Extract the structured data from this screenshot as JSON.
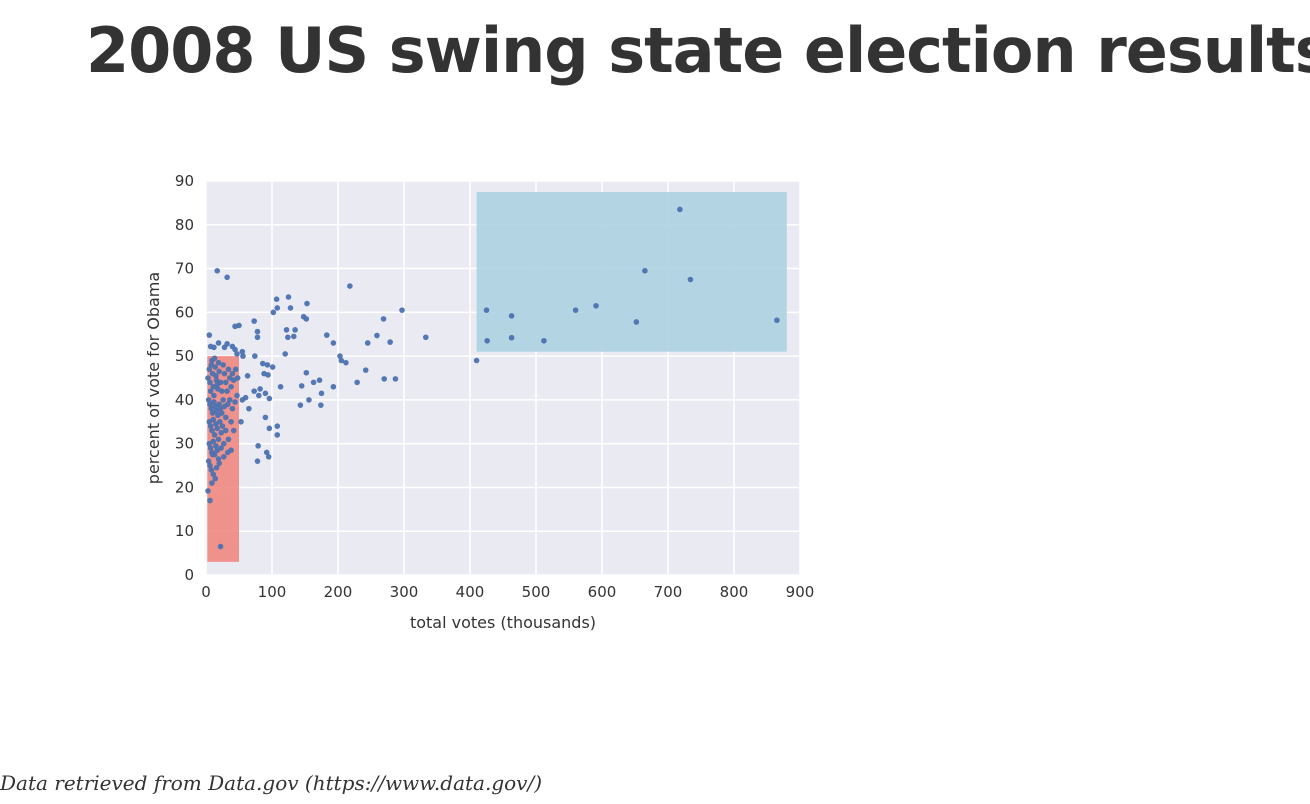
{
  "title": "2008 US swing state election results",
  "source": "Data retrieved from Data.gov (https://www.data.gov/)",
  "colors": {
    "plot_background": "#eaeaf2",
    "grid": "#ffffff",
    "points": "#4c72b0",
    "low_turnout_highlight": "#f0837a",
    "high_turnout_highlight": "#a8d0e0"
  },
  "chart_data": {
    "type": "scatter",
    "xlabel": "total votes (thousands)",
    "ylabel": "percent of vote for Obama",
    "xlim": [
      0,
      900
    ],
    "ylim": [
      0,
      90
    ],
    "xticks": [
      0,
      100,
      200,
      300,
      400,
      500,
      600,
      700,
      800,
      900
    ],
    "yticks": [
      0,
      10,
      20,
      30,
      40,
      50,
      60,
      70,
      80,
      90
    ],
    "grid": true,
    "highlights": [
      {
        "x_range": [
          2,
          50
        ],
        "y_range": [
          3,
          50
        ]
      },
      {
        "x_range": [
          410,
          880
        ],
        "y_range": [
          51,
          87.5
        ]
      }
    ],
    "points": [
      [
        17,
        69.5
      ],
      [
        32,
        68
      ],
      [
        218,
        66
      ],
      [
        125,
        63.5
      ],
      [
        107,
        63
      ],
      [
        153,
        62
      ],
      [
        297,
        60.5
      ],
      [
        108,
        61
      ],
      [
        128,
        61
      ],
      [
        102,
        60
      ],
      [
        148,
        59
      ],
      [
        152,
        58.5
      ],
      [
        269,
        58.5
      ],
      [
        73,
        58
      ],
      [
        50,
        57
      ],
      [
        44,
        56.8
      ],
      [
        122,
        56
      ],
      [
        135,
        56
      ],
      [
        78,
        55.6
      ],
      [
        5,
        54.8
      ],
      [
        259,
        54.7
      ],
      [
        78,
        54.3
      ],
      [
        133,
        54.5
      ],
      [
        124,
        54.3
      ],
      [
        333,
        54.3
      ],
      [
        279,
        53.2
      ],
      [
        245,
        53
      ],
      [
        193,
        53
      ],
      [
        183,
        54.8
      ],
      [
        19,
        53
      ],
      [
        32,
        52.8
      ],
      [
        7,
        52.2
      ],
      [
        12,
        52
      ],
      [
        28,
        52
      ],
      [
        40,
        52.2
      ],
      [
        44,
        51.5
      ],
      [
        55,
        51
      ],
      [
        120,
        50.5
      ],
      [
        47,
        50.5
      ],
      [
        56,
        50
      ],
      [
        74,
        50
      ],
      [
        203,
        50
      ],
      [
        205,
        49
      ],
      [
        212,
        48.5
      ],
      [
        86,
        48.3
      ],
      [
        93,
        48
      ],
      [
        101,
        47.5
      ],
      [
        242,
        46.8
      ],
      [
        152,
        46.2
      ],
      [
        88,
        46
      ],
      [
        63,
        45.5
      ],
      [
        94,
        45.7
      ],
      [
        172,
        44.5
      ],
      [
        163,
        44
      ],
      [
        229,
        44
      ],
      [
        270,
        44.8
      ],
      [
        287,
        44.8
      ],
      [
        113,
        43
      ],
      [
        145,
        43.2
      ],
      [
        193,
        43
      ],
      [
        73,
        42
      ],
      [
        82,
        42.5
      ],
      [
        175,
        41.5
      ],
      [
        90,
        41.5
      ],
      [
        80,
        41
      ],
      [
        60,
        40.5
      ],
      [
        55,
        40
      ],
      [
        96,
        40.3
      ],
      [
        156,
        40
      ],
      [
        143,
        38.8
      ],
      [
        174,
        38.8
      ],
      [
        65,
        38
      ],
      [
        90,
        36
      ],
      [
        53,
        35
      ],
      [
        108,
        34
      ],
      [
        96,
        33.5
      ],
      [
        108,
        32
      ],
      [
        79,
        29.5
      ],
      [
        92,
        28
      ],
      [
        95,
        27
      ],
      [
        78,
        26
      ],
      [
        22,
        6.5
      ],
      [
        410,
        49
      ],
      [
        426,
        53.5
      ],
      [
        425,
        60.5
      ],
      [
        463,
        59.2
      ],
      [
        463,
        54.2
      ],
      [
        512,
        53.5
      ],
      [
        560,
        60.5
      ],
      [
        591,
        61.5
      ],
      [
        652,
        57.8
      ],
      [
        665,
        69.5
      ],
      [
        718,
        83.5
      ],
      [
        734,
        67.5
      ],
      [
        865,
        58.2
      ],
      [
        3,
        45
      ],
      [
        5,
        47
      ],
      [
        6,
        44
      ],
      [
        7,
        42
      ],
      [
        8,
        48
      ],
      [
        9,
        49
      ],
      [
        10,
        46
      ],
      [
        11,
        43
      ],
      [
        12,
        41
      ],
      [
        13,
        49.5
      ],
      [
        14,
        47.5
      ],
      [
        15,
        45.5
      ],
      [
        16,
        44.5
      ],
      [
        17,
        43.5
      ],
      [
        18,
        42.5
      ],
      [
        19,
        48.5
      ],
      [
        20,
        46.5
      ],
      [
        22,
        44
      ],
      [
        24,
        42
      ],
      [
        26,
        48
      ],
      [
        28,
        46
      ],
      [
        30,
        44
      ],
      [
        32,
        42
      ],
      [
        34,
        47
      ],
      [
        36,
        45
      ],
      [
        38,
        43
      ],
      [
        40,
        46
      ],
      [
        42,
        44.5
      ],
      [
        45,
        47
      ],
      [
        48,
        45
      ],
      [
        4,
        40
      ],
      [
        6,
        39
      ],
      [
        8,
        38
      ],
      [
        10,
        37
      ],
      [
        12,
        39.5
      ],
      [
        14,
        38.5
      ],
      [
        16,
        37.5
      ],
      [
        18,
        36.5
      ],
      [
        20,
        39
      ],
      [
        22,
        38
      ],
      [
        24,
        37
      ],
      [
        26,
        40
      ],
      [
        28,
        38.5
      ],
      [
        30,
        36
      ],
      [
        33,
        39
      ],
      [
        36,
        40
      ],
      [
        40,
        38
      ],
      [
        44,
        39.5
      ],
      [
        47,
        41
      ],
      [
        5,
        35
      ],
      [
        7,
        34
      ],
      [
        9,
        33
      ],
      [
        11,
        35.5
      ],
      [
        13,
        32
      ],
      [
        15,
        34.5
      ],
      [
        17,
        33.5
      ],
      [
        19,
        31
      ],
      [
        21,
        35
      ],
      [
        23,
        32.5
      ],
      [
        25,
        34
      ],
      [
        27,
        30
      ],
      [
        30,
        33
      ],
      [
        34,
        31
      ],
      [
        38,
        35
      ],
      [
        42,
        33
      ],
      [
        5,
        30
      ],
      [
        7,
        29
      ],
      [
        9,
        28
      ],
      [
        11,
        30.5
      ],
      [
        13,
        27.5
      ],
      [
        15,
        29.5
      ],
      [
        17,
        28.5
      ],
      [
        19,
        26.5
      ],
      [
        23,
        29
      ],
      [
        27,
        27
      ],
      [
        33,
        28
      ],
      [
        38,
        28.5
      ],
      [
        4,
        26
      ],
      [
        6,
        25
      ],
      [
        8,
        24
      ],
      [
        10,
        27.5
      ],
      [
        3,
        19.2
      ],
      [
        6,
        17
      ],
      [
        9,
        21
      ],
      [
        11,
        23
      ],
      [
        14,
        22
      ],
      [
        16,
        24.5
      ],
      [
        20,
        25.5
      ]
    ]
  }
}
